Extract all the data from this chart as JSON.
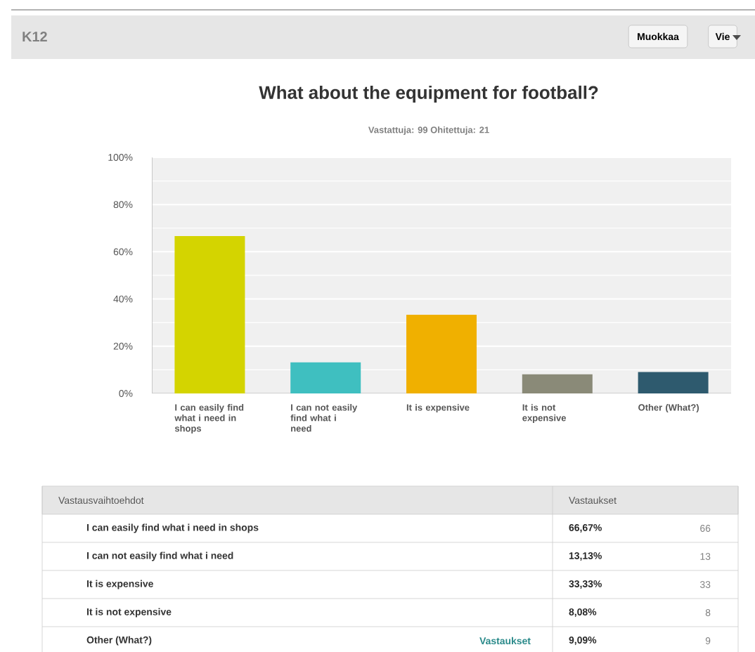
{
  "chart_data": {
    "type": "bar",
    "title": "What about the equipment for football?",
    "subtitle": "Vastattuja: 99    Ohitettuja: 21",
    "categories": [
      "I can easily find what i need in shops",
      "I can not easily find what i need",
      "It is expensive",
      "It is not expensive",
      "Other (What?)"
    ],
    "values": [
      66.67,
      13.13,
      33.33,
      8.08,
      9.09
    ],
    "colors": [
      "#d4d400",
      "#3fbfc0",
      "#f0b000",
      "#8a8a78",
      "#2e5a6e"
    ],
    "ylim": [
      0,
      100
    ],
    "yticks": [
      {
        "value": 0,
        "label": "0%"
      },
      {
        "value": 20,
        "label": "20%"
      },
      {
        "value": 40,
        "label": "40%"
      },
      {
        "value": 60,
        "label": "60%"
      },
      {
        "value": 80,
        "label": "80%"
      },
      {
        "value": 100,
        "label": "100%"
      }
    ],
    "grid": "y",
    "annotations": [
      "K12",
      "Muokkaa",
      "Vie",
      "Vastausvaihtoehdot",
      "Vastaukset",
      "66",
      "13",
      "33",
      "8",
      "9",
      "Vastaukset",
      "66,67%",
      "13,13%",
      "33,33%",
      "8,08%",
      "9,09%"
    ]
  }
}
